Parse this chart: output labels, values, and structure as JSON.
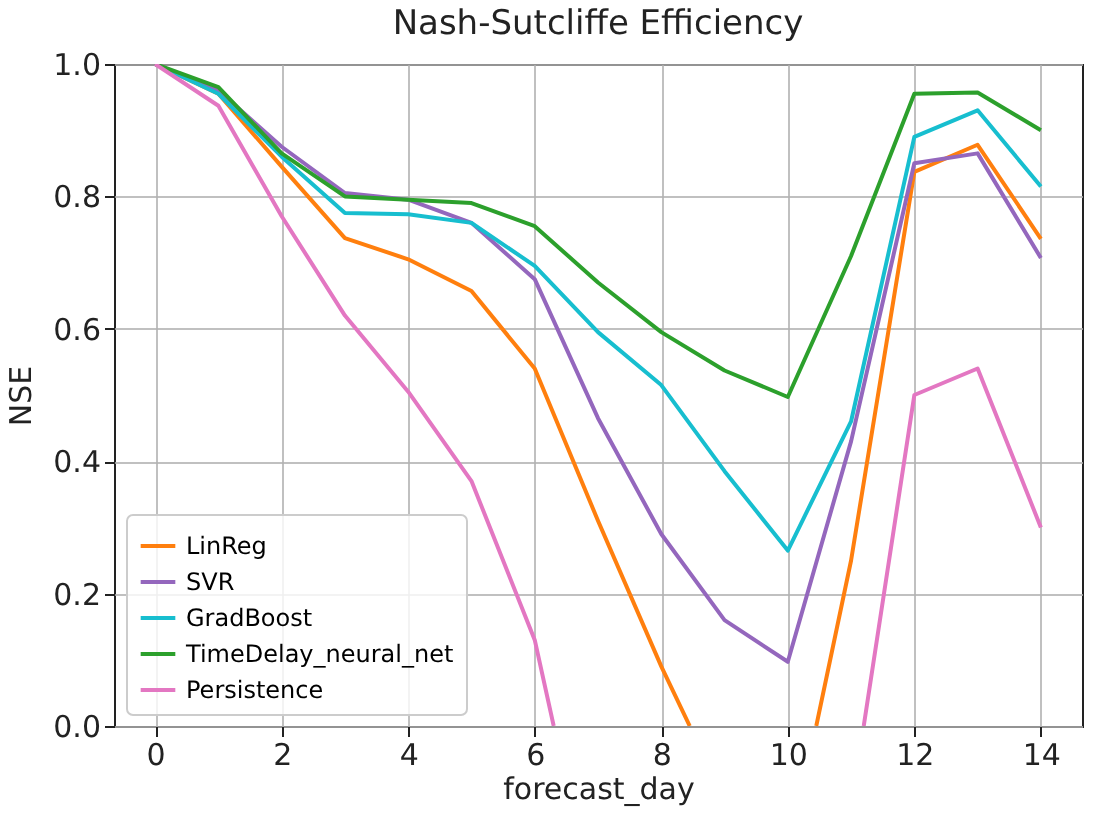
{
  "chart_data": {
    "type": "line",
    "title": "Nash-Sutcliffe Efficiency",
    "xlabel": "forecast_day",
    "ylabel": "NSE",
    "xlim": [
      -0.65,
      14.65
    ],
    "xticks": [
      0,
      2,
      4,
      6,
      8,
      10,
      12,
      14
    ],
    "ylim": [
      0,
      1
    ],
    "yticks": [
      {
        "value": 0,
        "label": "0.0"
      },
      {
        "value": 0.2,
        "label": "0.2"
      },
      {
        "value": 0.4,
        "label": "0.4"
      },
      {
        "value": 0.6,
        "label": "0.6"
      },
      {
        "value": 0.8,
        "label": "0.8"
      },
      {
        "value": 1,
        "label": "1.0"
      }
    ],
    "grid": true,
    "legend": "bottom left",
    "series": [
      {
        "name": "LinReg",
        "color": "#ff7f0e",
        "x": [
          0,
          1,
          2,
          3,
          4,
          5,
          6,
          7,
          8,
          8.45,
          10.45,
          11,
          12,
          13,
          14
        ],
        "values": [
          1,
          0.955,
          0.845,
          0.737,
          0.705,
          0.657,
          0.54,
          0.31,
          0.09,
          0,
          0,
          0.25,
          0.837,
          0.878,
          0.736
        ]
      },
      {
        "name": "SVR",
        "color": "#9467bd",
        "x": [
          0,
          1,
          2,
          3,
          4,
          5,
          6,
          7,
          8,
          9,
          10,
          11,
          12,
          13,
          14
        ],
        "values": [
          1,
          0.96,
          0.875,
          0.805,
          0.795,
          0.76,
          0.675,
          0.465,
          0.29,
          0.16,
          0.097,
          0.43,
          0.85,
          0.865,
          0.707
        ]
      },
      {
        "name": "GradBoost",
        "color": "#17becf",
        "x": [
          0,
          1,
          2,
          3,
          4,
          5,
          6,
          7,
          8,
          9,
          10,
          11,
          12,
          13,
          14
        ],
        "values": [
          1,
          0.955,
          0.86,
          0.775,
          0.773,
          0.76,
          0.695,
          0.595,
          0.515,
          0.385,
          0.265,
          0.46,
          0.89,
          0.93,
          0.815
        ]
      },
      {
        "name": "TimeDelay_neural_net",
        "color": "#2ca02c",
        "x": [
          0,
          1,
          2,
          3,
          4,
          5,
          6,
          7,
          8,
          9,
          10,
          11,
          12,
          13,
          14
        ],
        "values": [
          1,
          0.965,
          0.865,
          0.8,
          0.795,
          0.79,
          0.755,
          0.67,
          0.595,
          0.537,
          0.497,
          0.71,
          0.955,
          0.957,
          0.9
        ]
      },
      {
        "name": "Persistence",
        "color": "#e377c2",
        "x": [
          0,
          1,
          2,
          3,
          4,
          5,
          6,
          6.3,
          11.2,
          12,
          13,
          14
        ],
        "values": [
          1,
          0.937,
          0.77,
          0.62,
          0.505,
          0.37,
          0.13,
          0,
          0,
          0.5,
          0.54,
          0.3
        ]
      }
    ]
  }
}
